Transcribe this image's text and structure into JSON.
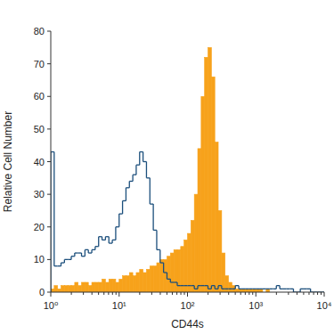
{
  "chart_data": {
    "type": "histogram",
    "x_label": "CD44s",
    "y_label": "Relative Cell Number",
    "log": "x",
    "xlim": [
      1,
      10000
    ],
    "xticks": [
      {
        "value": 1,
        "label": "10⁰"
      },
      {
        "value": 10,
        "label": "10¹"
      },
      {
        "value": 100,
        "label": "10²"
      },
      {
        "value": 1000,
        "label": "10³"
      },
      {
        "value": 10000,
        "label": "10⁴"
      }
    ],
    "ylim": [
      0,
      80
    ],
    "yticks": [
      0,
      10,
      20,
      30,
      40,
      50,
      60,
      70,
      80
    ],
    "grid": false,
    "bins": [
      1,
      1.122,
      1.259,
      1.413,
      1.585,
      1.778,
      1.995,
      2.239,
      2.512,
      2.818,
      3.162,
      3.548,
      3.981,
      4.467,
      5.012,
      5.623,
      6.31,
      7.079,
      7.943,
      8.913,
      10,
      11.22,
      12.59,
      14.13,
      15.85,
      17.78,
      19.95,
      22.39,
      25.12,
      28.18,
      31.62,
      35.48,
      39.81,
      44.67,
      50.12,
      56.23,
      63.1,
      70.79,
      79.43,
      89.13,
      100,
      112.2,
      125.9,
      141.3,
      158.5,
      177.8,
      199.5,
      223.9,
      251.2,
      281.8,
      316.2,
      354.8,
      398.1,
      446.7,
      501.2,
      562.3,
      631,
      707.9,
      794.3,
      891.3,
      1000,
      1122,
      1259,
      1413,
      1585,
      1778,
      1995,
      2239,
      2512,
      2818,
      3162,
      3548,
      3981,
      4467,
      5012,
      5623,
      6310,
      7079,
      7943,
      8913,
      10000
    ],
    "series": [
      {
        "type": "bar",
        "color": "#f7a21b",
        "values": [
          1,
          2,
          1,
          2,
          2,
          2,
          2,
          3,
          2,
          3,
          3,
          2,
          3,
          3,
          3,
          4,
          3,
          4,
          4,
          3,
          4,
          5,
          5,
          6,
          5,
          6,
          7,
          6,
          7,
          8,
          8,
          9,
          10,
          10,
          11,
          12,
          13,
          13,
          14,
          16,
          18,
          22,
          30,
          44,
          60,
          72,
          75,
          66,
          46,
          25,
          12,
          5,
          3,
          2,
          1,
          1,
          1,
          1,
          1,
          1,
          1,
          1,
          0,
          1,
          0,
          0,
          0,
          0,
          0,
          0,
          0,
          0,
          0,
          0,
          0,
          0,
          0,
          0,
          0,
          0
        ]
      },
      {
        "type": "step",
        "color": "#1c4f7c",
        "values": [
          43,
          8,
          8,
          9,
          10,
          10,
          11,
          12,
          12,
          11,
          13,
          12,
          13,
          14,
          17,
          16,
          17,
          15,
          16,
          20,
          24,
          28,
          32,
          34,
          36,
          39,
          43,
          40,
          35,
          27,
          19,
          13,
          9,
          6,
          4,
          3,
          3,
          2,
          2,
          2,
          2,
          2,
          1,
          2,
          2,
          2,
          1,
          2,
          1,
          2,
          1,
          1,
          1,
          1,
          2,
          1,
          1,
          1,
          1,
          1,
          1,
          1,
          1,
          1,
          1,
          1,
          2,
          1,
          1,
          1,
          1,
          0,
          0,
          1,
          1,
          1,
          0,
          0,
          0,
          0
        ]
      }
    ]
  }
}
